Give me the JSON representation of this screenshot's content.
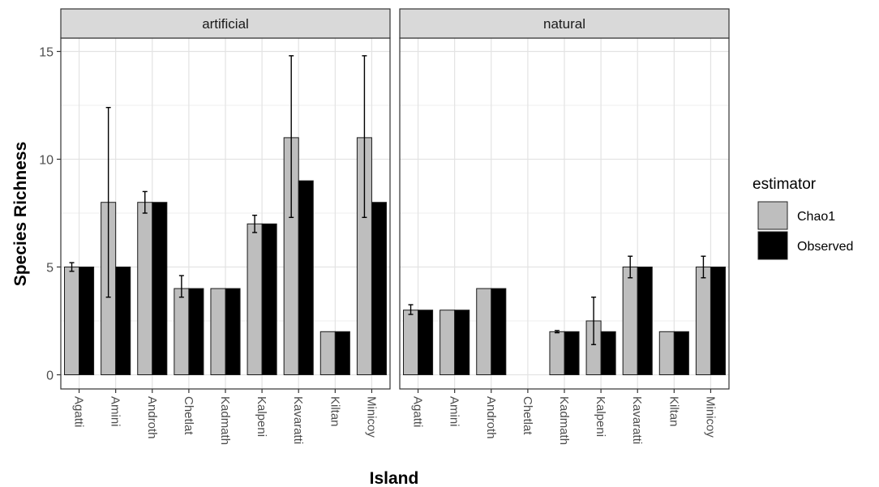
{
  "chart_data": {
    "type": "bar",
    "facets": [
      "artificial",
      "natural"
    ],
    "categories": [
      "Agatti",
      "Amini",
      "Androth",
      "Chetlat",
      "Kadmath",
      "Kalpeni",
      "Kavaratti",
      "Kiltan",
      "Minicoy"
    ],
    "xlabel": "Island",
    "ylabel": "Species Richness",
    "ylim": [
      0,
      15.9
    ],
    "yticks": [
      0,
      5,
      10,
      15
    ],
    "grid": true,
    "legend": {
      "title": "estimator",
      "position": "right",
      "entries": [
        {
          "name": "Chao1",
          "color": "#bebebe"
        },
        {
          "name": "Observed",
          "color": "#000000"
        }
      ]
    },
    "panels": [
      {
        "facet": "artificial",
        "series": [
          {
            "name": "Chao1",
            "values": [
              5,
              8,
              8,
              4,
              4,
              7,
              11,
              2,
              11
            ],
            "error_low": [
              4.8,
              3.6,
              7.5,
              3.6,
              null,
              6.6,
              7.3,
              null,
              7.3
            ],
            "error_high": [
              5.2,
              12.4,
              8.5,
              4.6,
              null,
              7.4,
              14.8,
              null,
              14.8
            ]
          },
          {
            "name": "Observed",
            "values": [
              5,
              5,
              8,
              4,
              4,
              7,
              9,
              2,
              8
            ]
          }
        ]
      },
      {
        "facet": "natural",
        "series": [
          {
            "name": "Chao1",
            "values": [
              3,
              3,
              4,
              null,
              2,
              2.5,
              5,
              2,
              5
            ],
            "error_low": [
              2.8,
              null,
              null,
              null,
              1.95,
              1.4,
              4.5,
              null,
              4.5
            ],
            "error_high": [
              3.25,
              null,
              null,
              null,
              2.05,
              3.6,
              5.5,
              null,
              5.5
            ]
          },
          {
            "name": "Observed",
            "values": [
              3,
              3,
              4,
              null,
              2,
              2,
              5,
              2,
              5
            ]
          }
        ]
      }
    ]
  }
}
